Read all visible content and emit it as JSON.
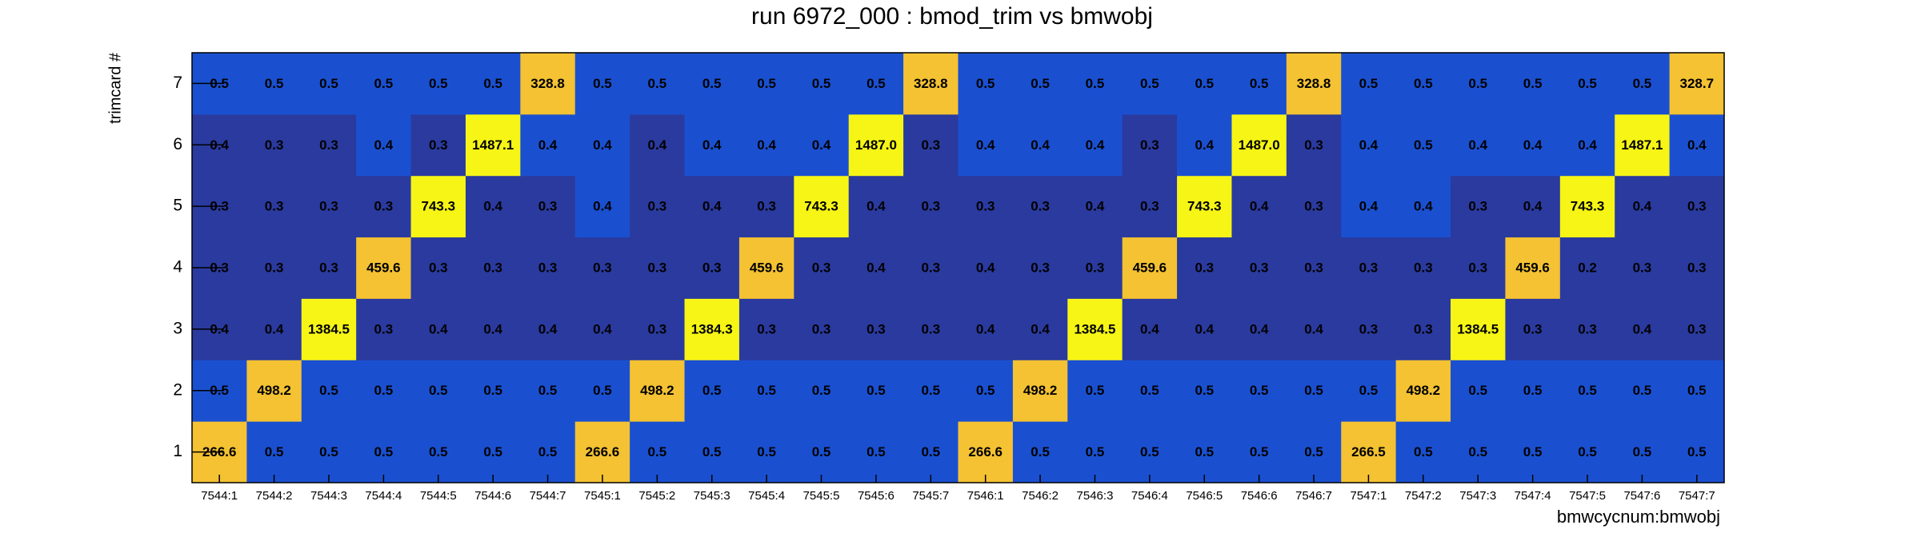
{
  "chart_data": {
    "type": "heatmap",
    "title": "run 6972_000 : bmod_trim vs bmwobj",
    "x_label": "bmwcycnum:bmwobj",
    "y_label": "trimcard #",
    "categories": [
      "7544:1",
      "7544:2",
      "7544:3",
      "7544:4",
      "7544:5",
      "7544:6",
      "7544:7",
      "7545:1",
      "7545:2",
      "7545:3",
      "7545:4",
      "7545:5",
      "7545:6",
      "7545:7",
      "7546:1",
      "7546:2",
      "7546:3",
      "7546:4",
      "7546:5",
      "7546:6",
      "7546:7",
      "7547:1",
      "7547:2",
      "7547:3",
      "7547:4",
      "7547:5",
      "7547:6",
      "7547:7"
    ],
    "y_categories": [
      "1",
      "2",
      "3",
      "4",
      "5",
      "6",
      "7"
    ],
    "z": [
      [
        266.6,
        0.5,
        0.5,
        0.5,
        0.5,
        0.5,
        0.5,
        266.6,
        0.5,
        0.5,
        0.5,
        0.5,
        0.5,
        0.5,
        266.6,
        0.5,
        0.5,
        0.5,
        0.5,
        0.5,
        0.5,
        266.5,
        0.5,
        0.5,
        0.5,
        0.5,
        0.5,
        0.5
      ],
      [
        0.5,
        498.2,
        0.5,
        0.5,
        0.5,
        0.5,
        0.5,
        0.5,
        498.2,
        0.5,
        0.5,
        0.5,
        0.5,
        0.5,
        0.5,
        498.2,
        0.5,
        0.5,
        0.5,
        0.5,
        0.5,
        0.5,
        498.2,
        0.5,
        0.5,
        0.5,
        0.5,
        0.5
      ],
      [
        0.4,
        0.4,
        1384.5,
        0.3,
        0.4,
        0.4,
        0.4,
        0.4,
        0.3,
        1384.3,
        0.3,
        0.3,
        0.3,
        0.3,
        0.4,
        0.4,
        1384.5,
        0.4,
        0.4,
        0.4,
        0.4,
        0.3,
        0.3,
        1384.5,
        0.3,
        0.3,
        0.4,
        0.3
      ],
      [
        0.3,
        0.3,
        0.3,
        459.6,
        0.3,
        0.3,
        0.3,
        0.3,
        0.3,
        0.3,
        459.6,
        0.3,
        0.4,
        0.3,
        0.4,
        0.3,
        0.3,
        459.6,
        0.3,
        0.3,
        0.3,
        0.3,
        0.3,
        0.3,
        459.6,
        0.2,
        0.3,
        0.3
      ],
      [
        0.3,
        0.3,
        0.3,
        0.3,
        743.3,
        0.4,
        0.3,
        0.4,
        0.3,
        0.4,
        0.3,
        743.3,
        0.4,
        0.3,
        0.3,
        0.3,
        0.4,
        0.3,
        743.3,
        0.4,
        0.3,
        0.4,
        0.4,
        0.3,
        0.4,
        743.3,
        0.4,
        0.3
      ],
      [
        0.4,
        0.3,
        0.3,
        0.4,
        0.3,
        1487.1,
        0.4,
        0.4,
        0.4,
        0.4,
        0.4,
        0.4,
        1487,
        0.3,
        0.4,
        0.4,
        0.4,
        0.3,
        0.4,
        1487,
        0.3,
        0.4,
        0.5,
        0.4,
        0.4,
        0.4,
        1487.1,
        0.4
      ],
      [
        0.5,
        0.5,
        0.5,
        0.5,
        0.5,
        0.5,
        328.8,
        0.5,
        0.5,
        0.5,
        0.5,
        0.5,
        0.5,
        328.8,
        0.5,
        0.5,
        0.5,
        0.5,
        0.5,
        0.5,
        328.8,
        0.5,
        0.5,
        0.5,
        0.5,
        0.5,
        0.5,
        328.7
      ]
    ],
    "value_labels": [
      [
        "266.6",
        "0.5",
        "0.5",
        "0.5",
        "0.5",
        "0.5",
        "0.5",
        "266.6",
        "0.5",
        "0.5",
        "0.5",
        "0.5",
        "0.5",
        "0.5",
        "266.6",
        "0.5",
        "0.5",
        "0.5",
        "0.5",
        "0.5",
        "0.5",
        "266.5",
        "0.5",
        "0.5",
        "0.5",
        "0.5",
        "0.5",
        "0.5"
      ],
      [
        "0.5",
        "498.2",
        "0.5",
        "0.5",
        "0.5",
        "0.5",
        "0.5",
        "0.5",
        "498.2",
        "0.5",
        "0.5",
        "0.5",
        "0.5",
        "0.5",
        "0.5",
        "498.2",
        "0.5",
        "0.5",
        "0.5",
        "0.5",
        "0.5",
        "0.5",
        "498.2",
        "0.5",
        "0.5",
        "0.5",
        "0.5",
        "0.5"
      ],
      [
        "0.4",
        "0.4",
        "1384.5",
        "0.3",
        "0.4",
        "0.4",
        "0.4",
        "0.4",
        "0.3",
        "1384.3",
        "0.3",
        "0.3",
        "0.3",
        "0.3",
        "0.4",
        "0.4",
        "1384.5",
        "0.4",
        "0.4",
        "0.4",
        "0.4",
        "0.3",
        "0.3",
        "1384.5",
        "0.3",
        "0.3",
        "0.4",
        "0.3"
      ],
      [
        "0.3",
        "0.3",
        "0.3",
        "459.6",
        "0.3",
        "0.3",
        "0.3",
        "0.3",
        "0.3",
        "0.3",
        "459.6",
        "0.3",
        "0.4",
        "0.3",
        "0.4",
        "0.3",
        "0.3",
        "459.6",
        "0.3",
        "0.3",
        "0.3",
        "0.3",
        "0.3",
        "0.3",
        "459.6",
        "0.2",
        "0.3",
        "0.3"
      ],
      [
        "0.3",
        "0.3",
        "0.3",
        "0.3",
        "743.3",
        "0.4",
        "0.3",
        "0.4",
        "0.3",
        "0.4",
        "0.3",
        "743.3",
        "0.4",
        "0.3",
        "0.3",
        "0.3",
        "0.4",
        "0.3",
        "743.3",
        "0.4",
        "0.3",
        "0.4",
        "0.4",
        "0.3",
        "0.4",
        "743.3",
        "0.4",
        "0.3"
      ],
      [
        "0.4",
        "0.3",
        "0.3",
        "0.4",
        "0.3",
        "1487.1",
        "0.4",
        "0.4",
        "0.4",
        "0.4",
        "0.4",
        "0.4",
        "1487.0",
        "0.3",
        "0.4",
        "0.4",
        "0.4",
        "0.3",
        "0.4",
        "1487.0",
        "0.3",
        "0.4",
        "0.5",
        "0.4",
        "0.4",
        "0.4",
        "1487.1",
        "0.4"
      ],
      [
        "0.5",
        "0.5",
        "0.5",
        "0.5",
        "0.5",
        "0.5",
        "328.8",
        "0.5",
        "0.5",
        "0.5",
        "0.5",
        "0.5",
        "0.5",
        "328.8",
        "0.5",
        "0.5",
        "0.5",
        "0.5",
        "0.5",
        "0.5",
        "328.8",
        "0.5",
        "0.5",
        "0.5",
        "0.5",
        "0.5",
        "0.5",
        "328.7"
      ]
    ],
    "colors": [
      [
        "#f4c232",
        "#1a50d0",
        "#1a50d0",
        "#1a50d0",
        "#1a50d0",
        "#1a50d0",
        "#1a50d0",
        "#f4c232",
        "#1a50d0",
        "#1a50d0",
        "#1a50d0",
        "#1a50d0",
        "#1a50d0",
        "#1a50d0",
        "#f4c232",
        "#1a50d0",
        "#1a50d0",
        "#1a50d0",
        "#1a50d0",
        "#1a50d0",
        "#1a50d0",
        "#f4c232",
        "#1a50d0",
        "#1a50d0",
        "#1a50d0",
        "#1a50d0",
        "#1a50d0",
        "#1a50d0"
      ],
      [
        "#1a50d0",
        "#f4c232",
        "#1a50d0",
        "#1a50d0",
        "#1a50d0",
        "#1a50d0",
        "#1a50d0",
        "#1a50d0",
        "#f4c232",
        "#1a50d0",
        "#1a50d0",
        "#1a50d0",
        "#1a50d0",
        "#1a50d0",
        "#1a50d0",
        "#f4c232",
        "#1a50d0",
        "#1a50d0",
        "#1a50d0",
        "#1a50d0",
        "#1a50d0",
        "#1a50d0",
        "#f4c232",
        "#1a50d0",
        "#1a50d0",
        "#1a50d0",
        "#1a50d0",
        "#1a50d0"
      ],
      [
        "#2a3a9e",
        "#2a3a9e",
        "#f6f516",
        "#2a3a9e",
        "#2a3a9e",
        "#2a3a9e",
        "#2a3a9e",
        "#2a3a9e",
        "#2a3a9e",
        "#f6f516",
        "#2a3a9e",
        "#2a3a9e",
        "#2a3a9e",
        "#2a3a9e",
        "#2a3a9e",
        "#2a3a9e",
        "#f6f516",
        "#2a3a9e",
        "#2a3a9e",
        "#2a3a9e",
        "#2a3a9e",
        "#2a3a9e",
        "#2a3a9e",
        "#f6f516",
        "#2a3a9e",
        "#2a3a9e",
        "#2a3a9e",
        "#2a3a9e"
      ],
      [
        "#2a3a9e",
        "#2a3a9e",
        "#2a3a9e",
        "#f4c232",
        "#2a3a9e",
        "#2a3a9e",
        "#2a3a9e",
        "#2a3a9e",
        "#2a3a9e",
        "#2a3a9e",
        "#f4c232",
        "#2a3a9e",
        "#2a3a9e",
        "#2a3a9e",
        "#2a3a9e",
        "#2a3a9e",
        "#2a3a9e",
        "#f4c232",
        "#2a3a9e",
        "#2a3a9e",
        "#2a3a9e",
        "#2a3a9e",
        "#2a3a9e",
        "#2a3a9e",
        "#f4c232",
        "#2a3a9e",
        "#2a3a9e",
        "#2a3a9e"
      ],
      [
        "#2a3a9e",
        "#2a3a9e",
        "#2a3a9e",
        "#2a3a9e",
        "#f6f516",
        "#2a3a9e",
        "#2a3a9e",
        "#1a50d0",
        "#2a3a9e",
        "#2a3a9e",
        "#2a3a9e",
        "#f6f516",
        "#2a3a9e",
        "#2a3a9e",
        "#2a3a9e",
        "#2a3a9e",
        "#2a3a9e",
        "#2a3a9e",
        "#f6f516",
        "#2a3a9e",
        "#2a3a9e",
        "#1a50d0",
        "#1a50d0",
        "#2a3a9e",
        "#2a3a9e",
        "#f6f516",
        "#2a3a9e",
        "#2a3a9e"
      ],
      [
        "#2a3a9e",
        "#2a3a9e",
        "#2a3a9e",
        "#1a50d0",
        "#2a3a9e",
        "#f6f516",
        "#1a50d0",
        "#1a50d0",
        "#2a3a9e",
        "#1a50d0",
        "#1a50d0",
        "#1a50d0",
        "#f6f516",
        "#2a3a9e",
        "#1a50d0",
        "#1a50d0",
        "#1a50d0",
        "#2a3a9e",
        "#1a50d0",
        "#f6f516",
        "#2a3a9e",
        "#1a50d0",
        "#1a50d0",
        "#1a50d0",
        "#1a50d0",
        "#1a50d0",
        "#f6f516",
        "#1a50d0"
      ],
      [
        "#1a50d0",
        "#1a50d0",
        "#1a50d0",
        "#1a50d0",
        "#1a50d0",
        "#1a50d0",
        "#f4c232",
        "#1a50d0",
        "#1a50d0",
        "#1a50d0",
        "#1a50d0",
        "#1a50d0",
        "#1a50d0",
        "#f4c232",
        "#1a50d0",
        "#1a50d0",
        "#1a50d0",
        "#1a50d0",
        "#1a50d0",
        "#1a50d0",
        "#f4c232",
        "#1a50d0",
        "#1a50d0",
        "#1a50d0",
        "#1a50d0",
        "#1a50d0",
        "#1a50d0",
        "#f4c232"
      ]
    ]
  }
}
